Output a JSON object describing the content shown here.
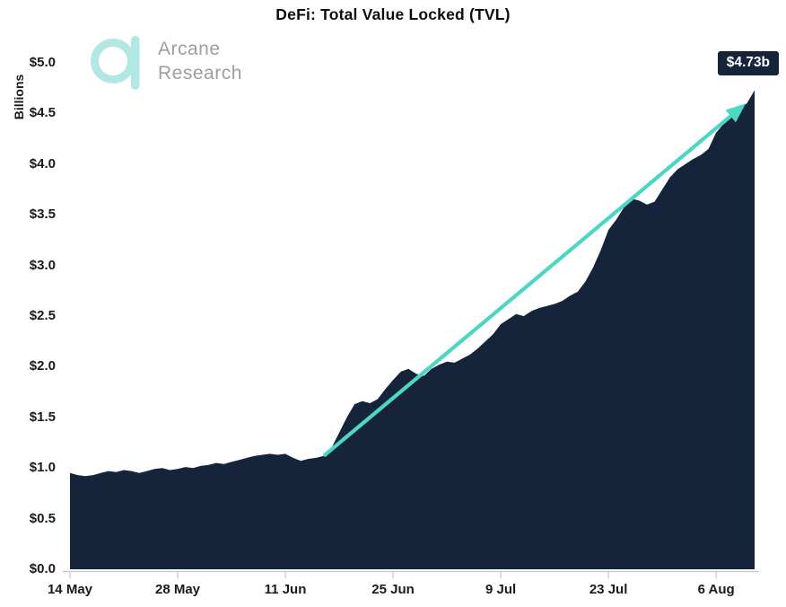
{
  "header": {
    "title": "DeFi: Total Value Locked (TVL)"
  },
  "logo": {
    "line1": "Arcane",
    "line2": "Research"
  },
  "colors": {
    "background": "#ffffff",
    "area": "#15243a",
    "arrow": "#4dd6c4",
    "logo_mark": "#b2e8e3",
    "logo_text": "#9e9e9e",
    "axis_line": "#c4c4c4",
    "label_text": "#1a1a1a",
    "callout_bg": "#15243a",
    "callout_text": "#ffffff"
  },
  "chart_data": {
    "type": "area",
    "title": "DeFi: Total Value Locked (TVL)",
    "ylabel": "Billions",
    "ylim": [
      0,
      5.0
    ],
    "ytick_values": [
      5.0,
      4.5,
      4.0,
      3.5,
      3.0,
      2.5,
      2.0,
      1.5,
      1.0,
      0.5,
      0.0
    ],
    "ytick_labels": [
      "$5.0",
      "$4.5",
      "$4.0",
      "$3.5",
      "$3.0",
      "$2.5",
      "$2.0",
      "$1.5",
      "$1.0",
      "$0.5",
      "$0.0"
    ],
    "xtick_labels": [
      "14 May",
      "28 May",
      "11 Jun",
      "25 Jun",
      "9 Jul",
      "23 Jul",
      "6 Aug"
    ],
    "xtick_positions_day": [
      0,
      14,
      28,
      42,
      56,
      70,
      84
    ],
    "x_range": [
      "14 May",
      "11 Aug"
    ],
    "grid": false,
    "legend": false,
    "end_value": 4.73,
    "end_value_label": "$4.73b",
    "trend_arrow": {
      "from_day": 33,
      "from_value": 1.12,
      "to_day": 87.4,
      "to_value": 4.57
    },
    "values": [
      0.95,
      0.93,
      0.92,
      0.93,
      0.95,
      0.97,
      0.96,
      0.98,
      0.97,
      0.95,
      0.97,
      0.99,
      1.0,
      0.98,
      0.99,
      1.01,
      1.0,
      1.02,
      1.03,
      1.05,
      1.04,
      1.06,
      1.08,
      1.1,
      1.12,
      1.13,
      1.14,
      1.13,
      1.14,
      1.1,
      1.07,
      1.09,
      1.1,
      1.12,
      1.2,
      1.35,
      1.5,
      1.63,
      1.66,
      1.64,
      1.68,
      1.78,
      1.87,
      1.95,
      1.98,
      1.93,
      1.91,
      1.98,
      2.02,
      2.05,
      2.04,
      2.08,
      2.12,
      2.18,
      2.25,
      2.32,
      2.42,
      2.47,
      2.52,
      2.5,
      2.55,
      2.58,
      2.6,
      2.62,
      2.65,
      2.7,
      2.74,
      2.84,
      2.98,
      3.15,
      3.35,
      3.45,
      3.57,
      3.66,
      3.64,
      3.6,
      3.63,
      3.75,
      3.87,
      3.95,
      4.0,
      4.05,
      4.09,
      4.15,
      4.31,
      4.4,
      4.48,
      4.55,
      4.6,
      4.73
    ]
  }
}
